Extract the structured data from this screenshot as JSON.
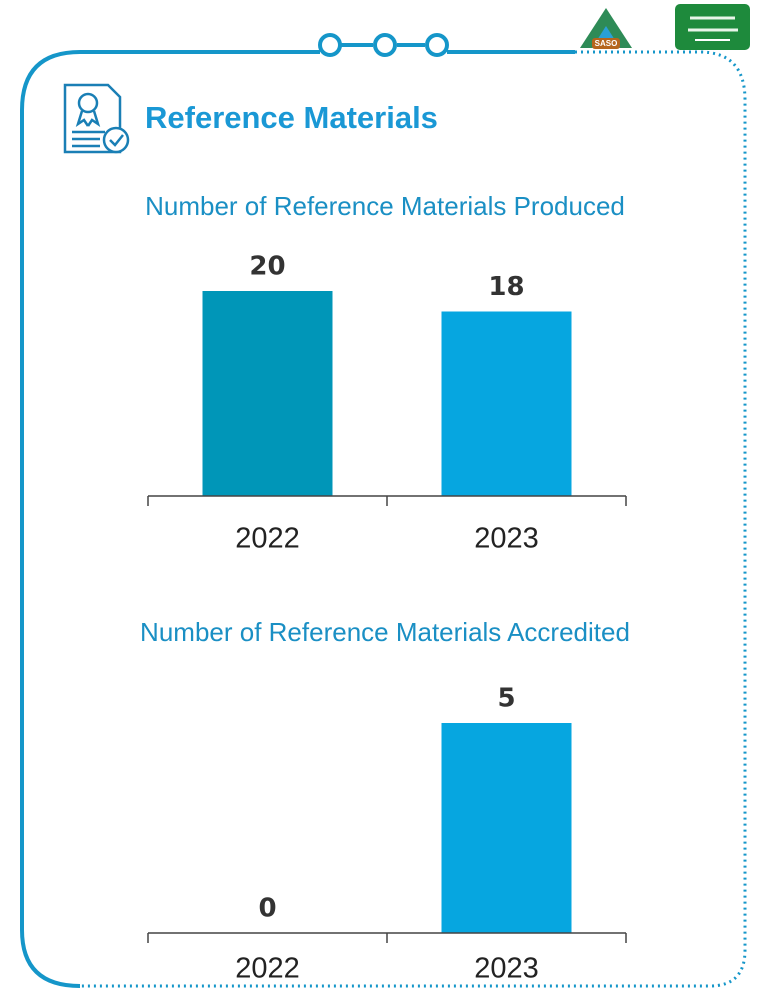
{
  "header": {
    "title": "Reference Materials",
    "logo": "SASO"
  },
  "chart_data": [
    {
      "type": "bar",
      "title": "Number of Reference Materials Produced",
      "categories": [
        "2022",
        "2023"
      ],
      "values": [
        20,
        18
      ],
      "colors": [
        "#0096b8",
        "#06a6e0"
      ],
      "ylim": [
        0,
        20
      ]
    },
    {
      "type": "bar",
      "title": "Number of Reference Materials Accredited",
      "categories": [
        "2022",
        "2023"
      ],
      "values": [
        0,
        5
      ],
      "colors": [
        "#0096b8",
        "#06a6e0"
      ],
      "ylim": [
        0,
        5
      ]
    }
  ]
}
